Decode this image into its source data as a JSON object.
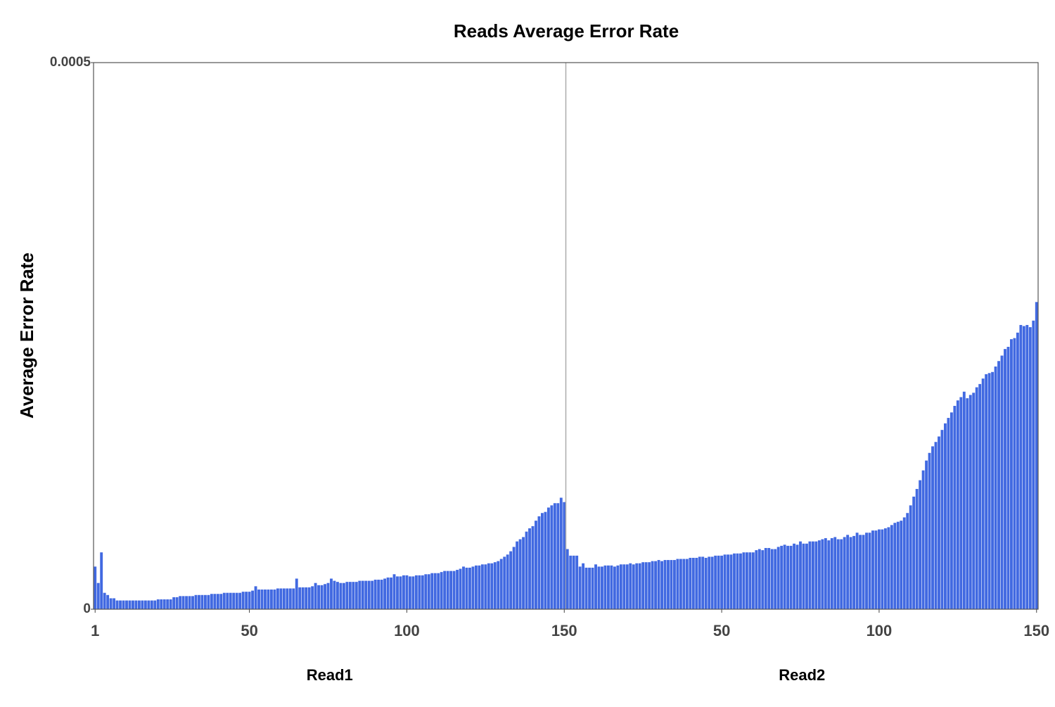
{
  "chart_data": {
    "type": "bar",
    "title": "Reads Average Error Rate",
    "ylabel": "Average Error Rate",
    "ylim": [
      0,
      0.0005
    ],
    "yticks": [
      0,
      0.0005
    ],
    "series": [
      {
        "name": "Read1",
        "color": "#4169e1",
        "xticks": [
          1,
          50,
          100,
          150
        ],
        "values": [
          3.9e-05,
          2.4e-05,
          5.2e-05,
          1.5e-05,
          1.3e-05,
          1e-05,
          1e-05,
          8e-06,
          8e-06,
          8e-06,
          8e-06,
          8e-06,
          8e-06,
          8e-06,
          8e-06,
          8e-06,
          8e-06,
          8e-06,
          8e-06,
          8e-06,
          9e-06,
          9e-06,
          9e-06,
          9e-06,
          9e-06,
          1.1e-05,
          1.1e-05,
          1.2e-05,
          1.2e-05,
          1.2e-05,
          1.2e-05,
          1.2e-05,
          1.3e-05,
          1.3e-05,
          1.3e-05,
          1.3e-05,
          1.3e-05,
          1.4e-05,
          1.4e-05,
          1.4e-05,
          1.4e-05,
          1.5e-05,
          1.5e-05,
          1.5e-05,
          1.5e-05,
          1.5e-05,
          1.5e-05,
          1.6e-05,
          1.6e-05,
          1.6e-05,
          1.7e-05,
          2.1e-05,
          1.8e-05,
          1.8e-05,
          1.8e-05,
          1.8e-05,
          1.8e-05,
          1.8e-05,
          1.9e-05,
          1.9e-05,
          1.9e-05,
          1.9e-05,
          1.9e-05,
          1.9e-05,
          2.8e-05,
          2e-05,
          2e-05,
          2e-05,
          2e-05,
          2.1e-05,
          2.4e-05,
          2.2e-05,
          2.2e-05,
          2.3e-05,
          2.4e-05,
          2.8e-05,
          2.6e-05,
          2.5e-05,
          2.4e-05,
          2.4e-05,
          2.5e-05,
          2.5e-05,
          2.5e-05,
          2.5e-05,
          2.6e-05,
          2.6e-05,
          2.6e-05,
          2.6e-05,
          2.6e-05,
          2.7e-05,
          2.7e-05,
          2.7e-05,
          2.8e-05,
          2.9e-05,
          2.9e-05,
          3.2e-05,
          3e-05,
          3e-05,
          3.1e-05,
          3.1e-05,
          3e-05,
          3e-05,
          3.1e-05,
          3.1e-05,
          3.1e-05,
          3.2e-05,
          3.2e-05,
          3.3e-05,
          3.3e-05,
          3.3e-05,
          3.4e-05,
          3.5e-05,
          3.5e-05,
          3.5e-05,
          3.5e-05,
          3.6e-05,
          3.7e-05,
          3.9e-05,
          3.8e-05,
          3.8e-05,
          3.9e-05,
          4e-05,
          4e-05,
          4.1e-05,
          4.1e-05,
          4.2e-05,
          4.2e-05,
          4.3e-05,
          4.4e-05,
          4.6e-05,
          4.8e-05,
          5e-05,
          5.3e-05,
          5.7e-05,
          6.2e-05,
          6.4e-05,
          6.6e-05,
          7.1e-05,
          7.4e-05,
          7.6e-05,
          8.1e-05,
          8.5e-05,
          8.8e-05,
          8.9e-05,
          9.3e-05,
          9.5e-05,
          9.7e-05,
          9.7e-05,
          0.000102,
          9.8e-05
        ]
      },
      {
        "name": "Read2",
        "color": "#4169e1",
        "xticks": [
          50,
          100,
          150
        ],
        "values": [
          5.5e-05,
          4.9e-05,
          4.9e-05,
          4.9e-05,
          3.9e-05,
          4.2e-05,
          3.8e-05,
          3.8e-05,
          3.8e-05,
          4.1e-05,
          3.9e-05,
          3.9e-05,
          4e-05,
          4e-05,
          4e-05,
          3.9e-05,
          4e-05,
          4.1e-05,
          4.1e-05,
          4.1e-05,
          4.2e-05,
          4.1e-05,
          4.2e-05,
          4.2e-05,
          4.3e-05,
          4.3e-05,
          4.3e-05,
          4.4e-05,
          4.4e-05,
          4.5e-05,
          4.4e-05,
          4.5e-05,
          4.5e-05,
          4.5e-05,
          4.5e-05,
          4.6e-05,
          4.6e-05,
          4.6e-05,
          4.6e-05,
          4.7e-05,
          4.7e-05,
          4.7e-05,
          4.8e-05,
          4.8e-05,
          4.7e-05,
          4.8e-05,
          4.8e-05,
          4.9e-05,
          4.9e-05,
          4.9e-05,
          5e-05,
          5e-05,
          5e-05,
          5.1e-05,
          5.1e-05,
          5.1e-05,
          5.2e-05,
          5.2e-05,
          5.2e-05,
          5.2e-05,
          5.4e-05,
          5.5e-05,
          5.4e-05,
          5.6e-05,
          5.6e-05,
          5.5e-05,
          5.5e-05,
          5.7e-05,
          5.8e-05,
          5.9e-05,
          5.8e-05,
          5.8e-05,
          6e-05,
          5.9e-05,
          6.2e-05,
          6e-05,
          6e-05,
          6.2e-05,
          6.2e-05,
          6.2e-05,
          6.3e-05,
          6.4e-05,
          6.5e-05,
          6.3e-05,
          6.5e-05,
          6.6e-05,
          6.4e-05,
          6.4e-05,
          6.6e-05,
          6.8e-05,
          6.6e-05,
          6.7e-05,
          7e-05,
          6.8e-05,
          6.8e-05,
          7e-05,
          7e-05,
          7.2e-05,
          7.2e-05,
          7.3e-05,
          7.3e-05,
          7.4e-05,
          7.5e-05,
          7.7e-05,
          7.9e-05,
          8e-05,
          8.1e-05,
          8.4e-05,
          8.8e-05,
          9.5e-05,
          0.000103,
          0.00011,
          0.000118,
          0.000127,
          0.000136,
          0.000143,
          0.000149,
          0.000153,
          0.000158,
          0.000164,
          0.00017,
          0.000175,
          0.00018,
          0.000186,
          0.000191,
          0.000194,
          0.000199,
          0.000193,
          0.000196,
          0.000198,
          0.000203,
          0.000206,
          0.000211,
          0.000215,
          0.000216,
          0.000217,
          0.000222,
          0.000227,
          0.000232,
          0.000238,
          0.00024,
          0.000247,
          0.000248,
          0.000253,
          0.00026,
          0.000259,
          0.00026,
          0.000258,
          0.000264,
          0.000281
        ]
      }
    ]
  }
}
